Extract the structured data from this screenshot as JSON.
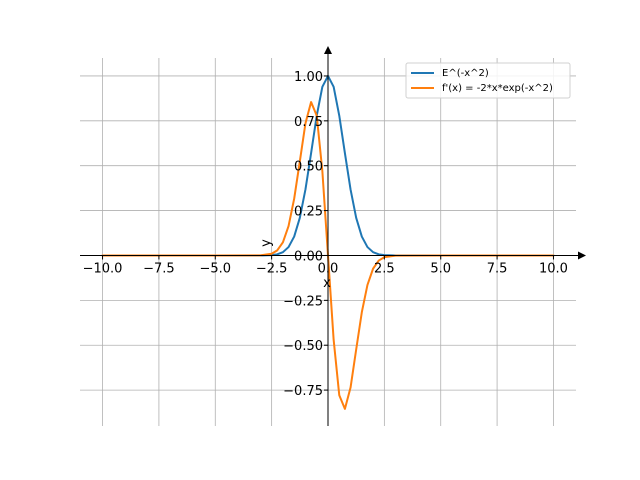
{
  "chart_data": {
    "type": "line",
    "title": "",
    "xlabel": "x",
    "ylabel": "y",
    "xlim": [
      -11.0,
      11.0
    ],
    "ylim": [
      -0.95,
      1.1
    ],
    "grid": true,
    "legend_position": "top-right",
    "x_ticks": [
      -10.0,
      -7.5,
      -5.0,
      -2.5,
      0.0,
      2.5,
      5.0,
      7.5,
      10.0
    ],
    "x_tick_labels": [
      "−10.0",
      "−7.5",
      "−5.0",
      "−2.5",
      "0.0",
      "2.5",
      "5.0",
      "7.5",
      "10.0"
    ],
    "y_ticks": [
      -0.75,
      -0.5,
      -0.25,
      0.0,
      0.25,
      0.5,
      0.75,
      1.0
    ],
    "y_tick_labels": [
      "−0.75",
      "−0.50",
      "−0.25",
      "0.00",
      "0.25",
      "0.50",
      "0.75",
      "1.00"
    ],
    "x": [
      -10.0,
      -5.0,
      -3.0,
      -2.5,
      -2.25,
      -2.0,
      -1.75,
      -1.5,
      -1.25,
      -1.0,
      -0.75,
      -0.5,
      -0.25,
      0.0,
      0.25,
      0.5,
      0.75,
      1.0,
      1.25,
      1.5,
      1.75,
      2.0,
      2.25,
      2.5,
      3.0,
      5.0,
      10.0
    ],
    "series": [
      {
        "name": "E^(-x^2)",
        "color": "#1f77b4",
        "values": [
          0.0,
          0.0,
          0.0001,
          0.0019,
          0.0063,
          0.0183,
          0.0468,
          0.1054,
          0.2096,
          0.3679,
          0.5698,
          0.7788,
          0.9394,
          1.0,
          0.9394,
          0.7788,
          0.5698,
          0.3679,
          0.2096,
          0.1054,
          0.0468,
          0.0183,
          0.0063,
          0.0019,
          0.0001,
          0.0,
          0.0
        ]
      },
      {
        "name": "f'(x) = -2*x*exp(-x^2)",
        "color": "#ff7f0e",
        "values": [
          0.0,
          0.0,
          0.0007,
          0.0096,
          0.0285,
          0.0733,
          0.1639,
          0.3162,
          0.5239,
          0.7358,
          0.8547,
          0.7788,
          0.4697,
          0.0,
          -0.4697,
          -0.7788,
          -0.8547,
          -0.7358,
          -0.5239,
          -0.3162,
          -0.1639,
          -0.0733,
          -0.0285,
          -0.0096,
          -0.0007,
          0.0,
          0.0
        ]
      }
    ]
  }
}
